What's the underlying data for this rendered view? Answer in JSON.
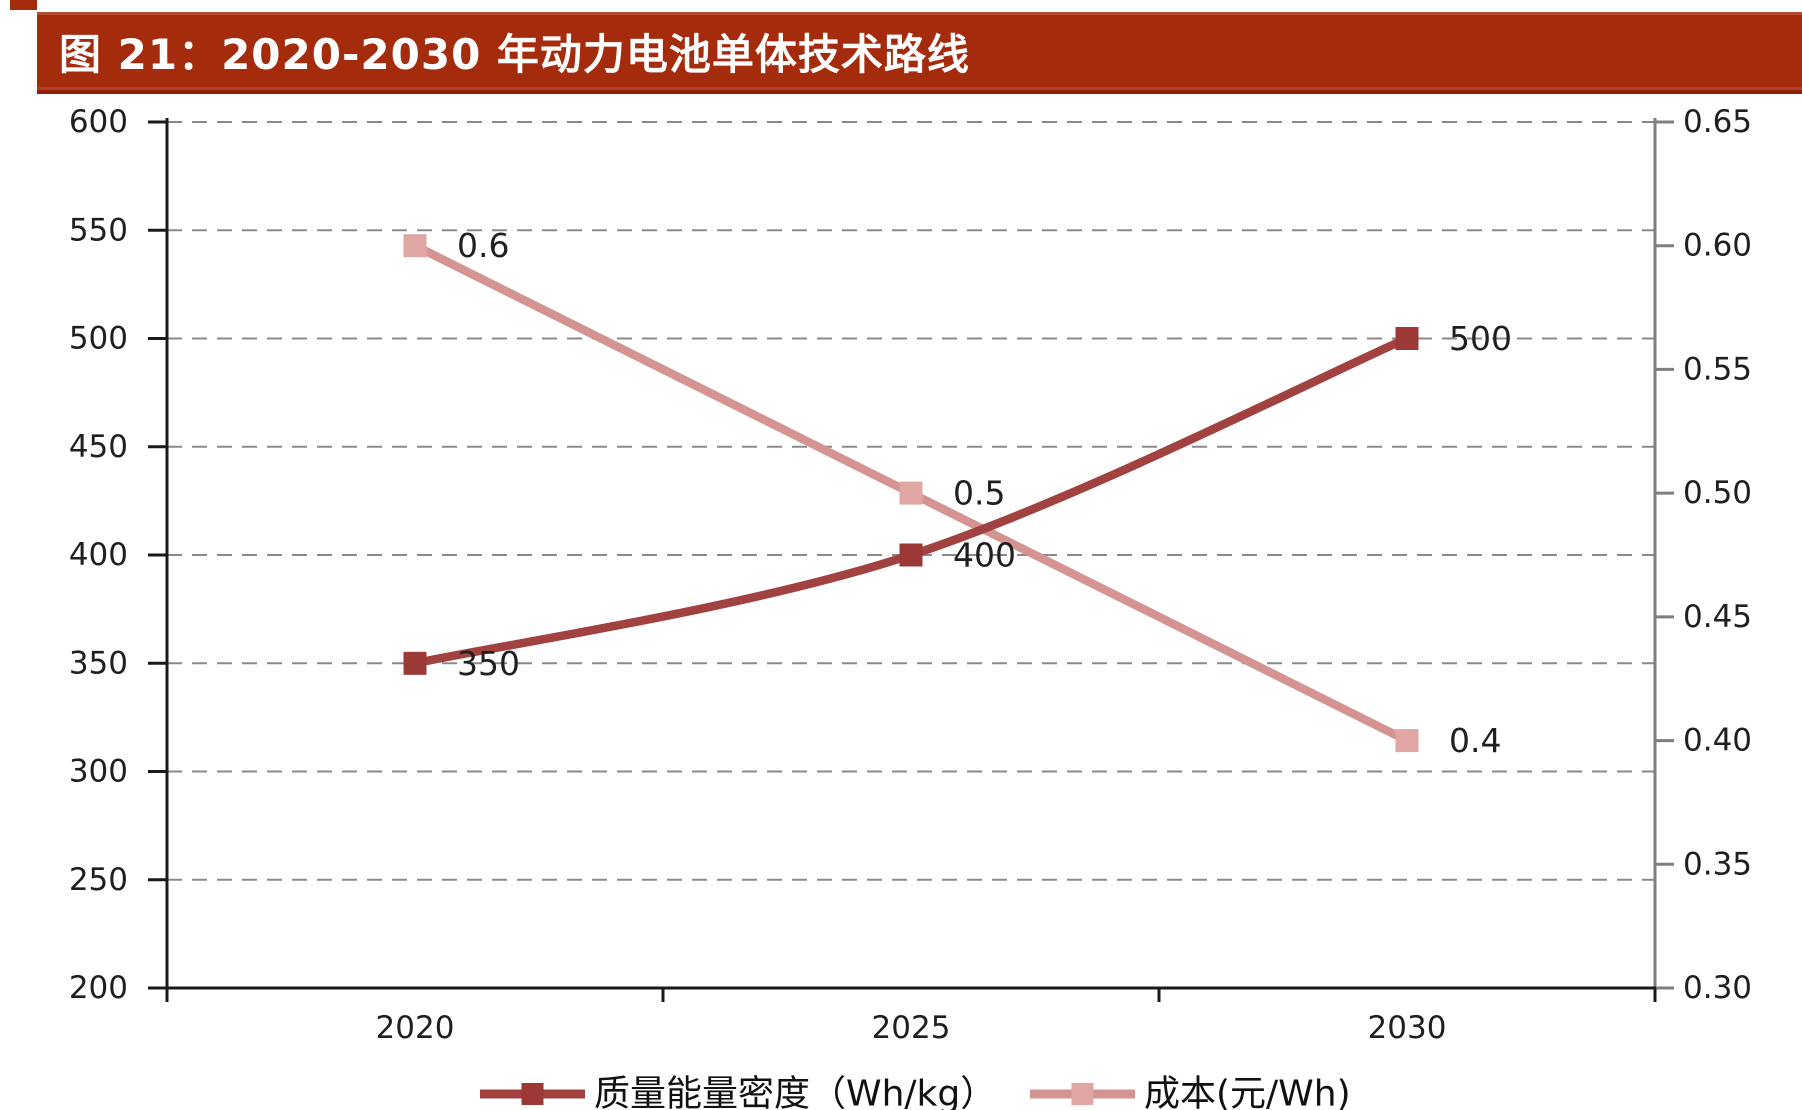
{
  "title": "图 21：2020-2030 年动力电池单体技术路线",
  "colors": {
    "title_bar": "#A52B0D",
    "title_text": "#FFFFFF",
    "axis_black": "#1A1A1A",
    "axis_gray": "#7F7F7F",
    "gridline": "#8A8A8A",
    "tick_label": "#1F1F1F",
    "data_label": "#1F1F1F",
    "legend_text": "#111111"
  },
  "chart_data": {
    "type": "line",
    "title": "图 21：2020-2030 年动力电池单体技术路线",
    "x": [
      "2020",
      "2025",
      "2030"
    ],
    "series": [
      {
        "name": "质量能量密度（Wh/kg）",
        "axis": "left",
        "values": [
          350,
          400,
          500
        ],
        "data_labels": [
          "350",
          "400",
          "500"
        ],
        "line_color": "#A14140",
        "marker_color": "#9C3836",
        "marker": "square"
      },
      {
        "name": "成本(元/Wh)",
        "axis": "right",
        "values": [
          0.6,
          0.5,
          0.4
        ],
        "data_labels": [
          "0.6",
          "0.5",
          "0.4"
        ],
        "line_color": "#D49492",
        "marker_color": "#DFA6A4",
        "marker": "square"
      }
    ],
    "left_axis": {
      "range": [
        200,
        600
      ],
      "ticks": [
        "600",
        "550",
        "500",
        "450",
        "400",
        "350",
        "300",
        "250",
        "200"
      ]
    },
    "right_axis": {
      "range": [
        0.3,
        0.65
      ],
      "ticks": [
        "0.65",
        "0.60",
        "0.55",
        "0.50",
        "0.45",
        "0.40",
        "0.35",
        "0.30"
      ]
    },
    "grid": "dashed-horizontal",
    "legend_position": "bottom"
  }
}
